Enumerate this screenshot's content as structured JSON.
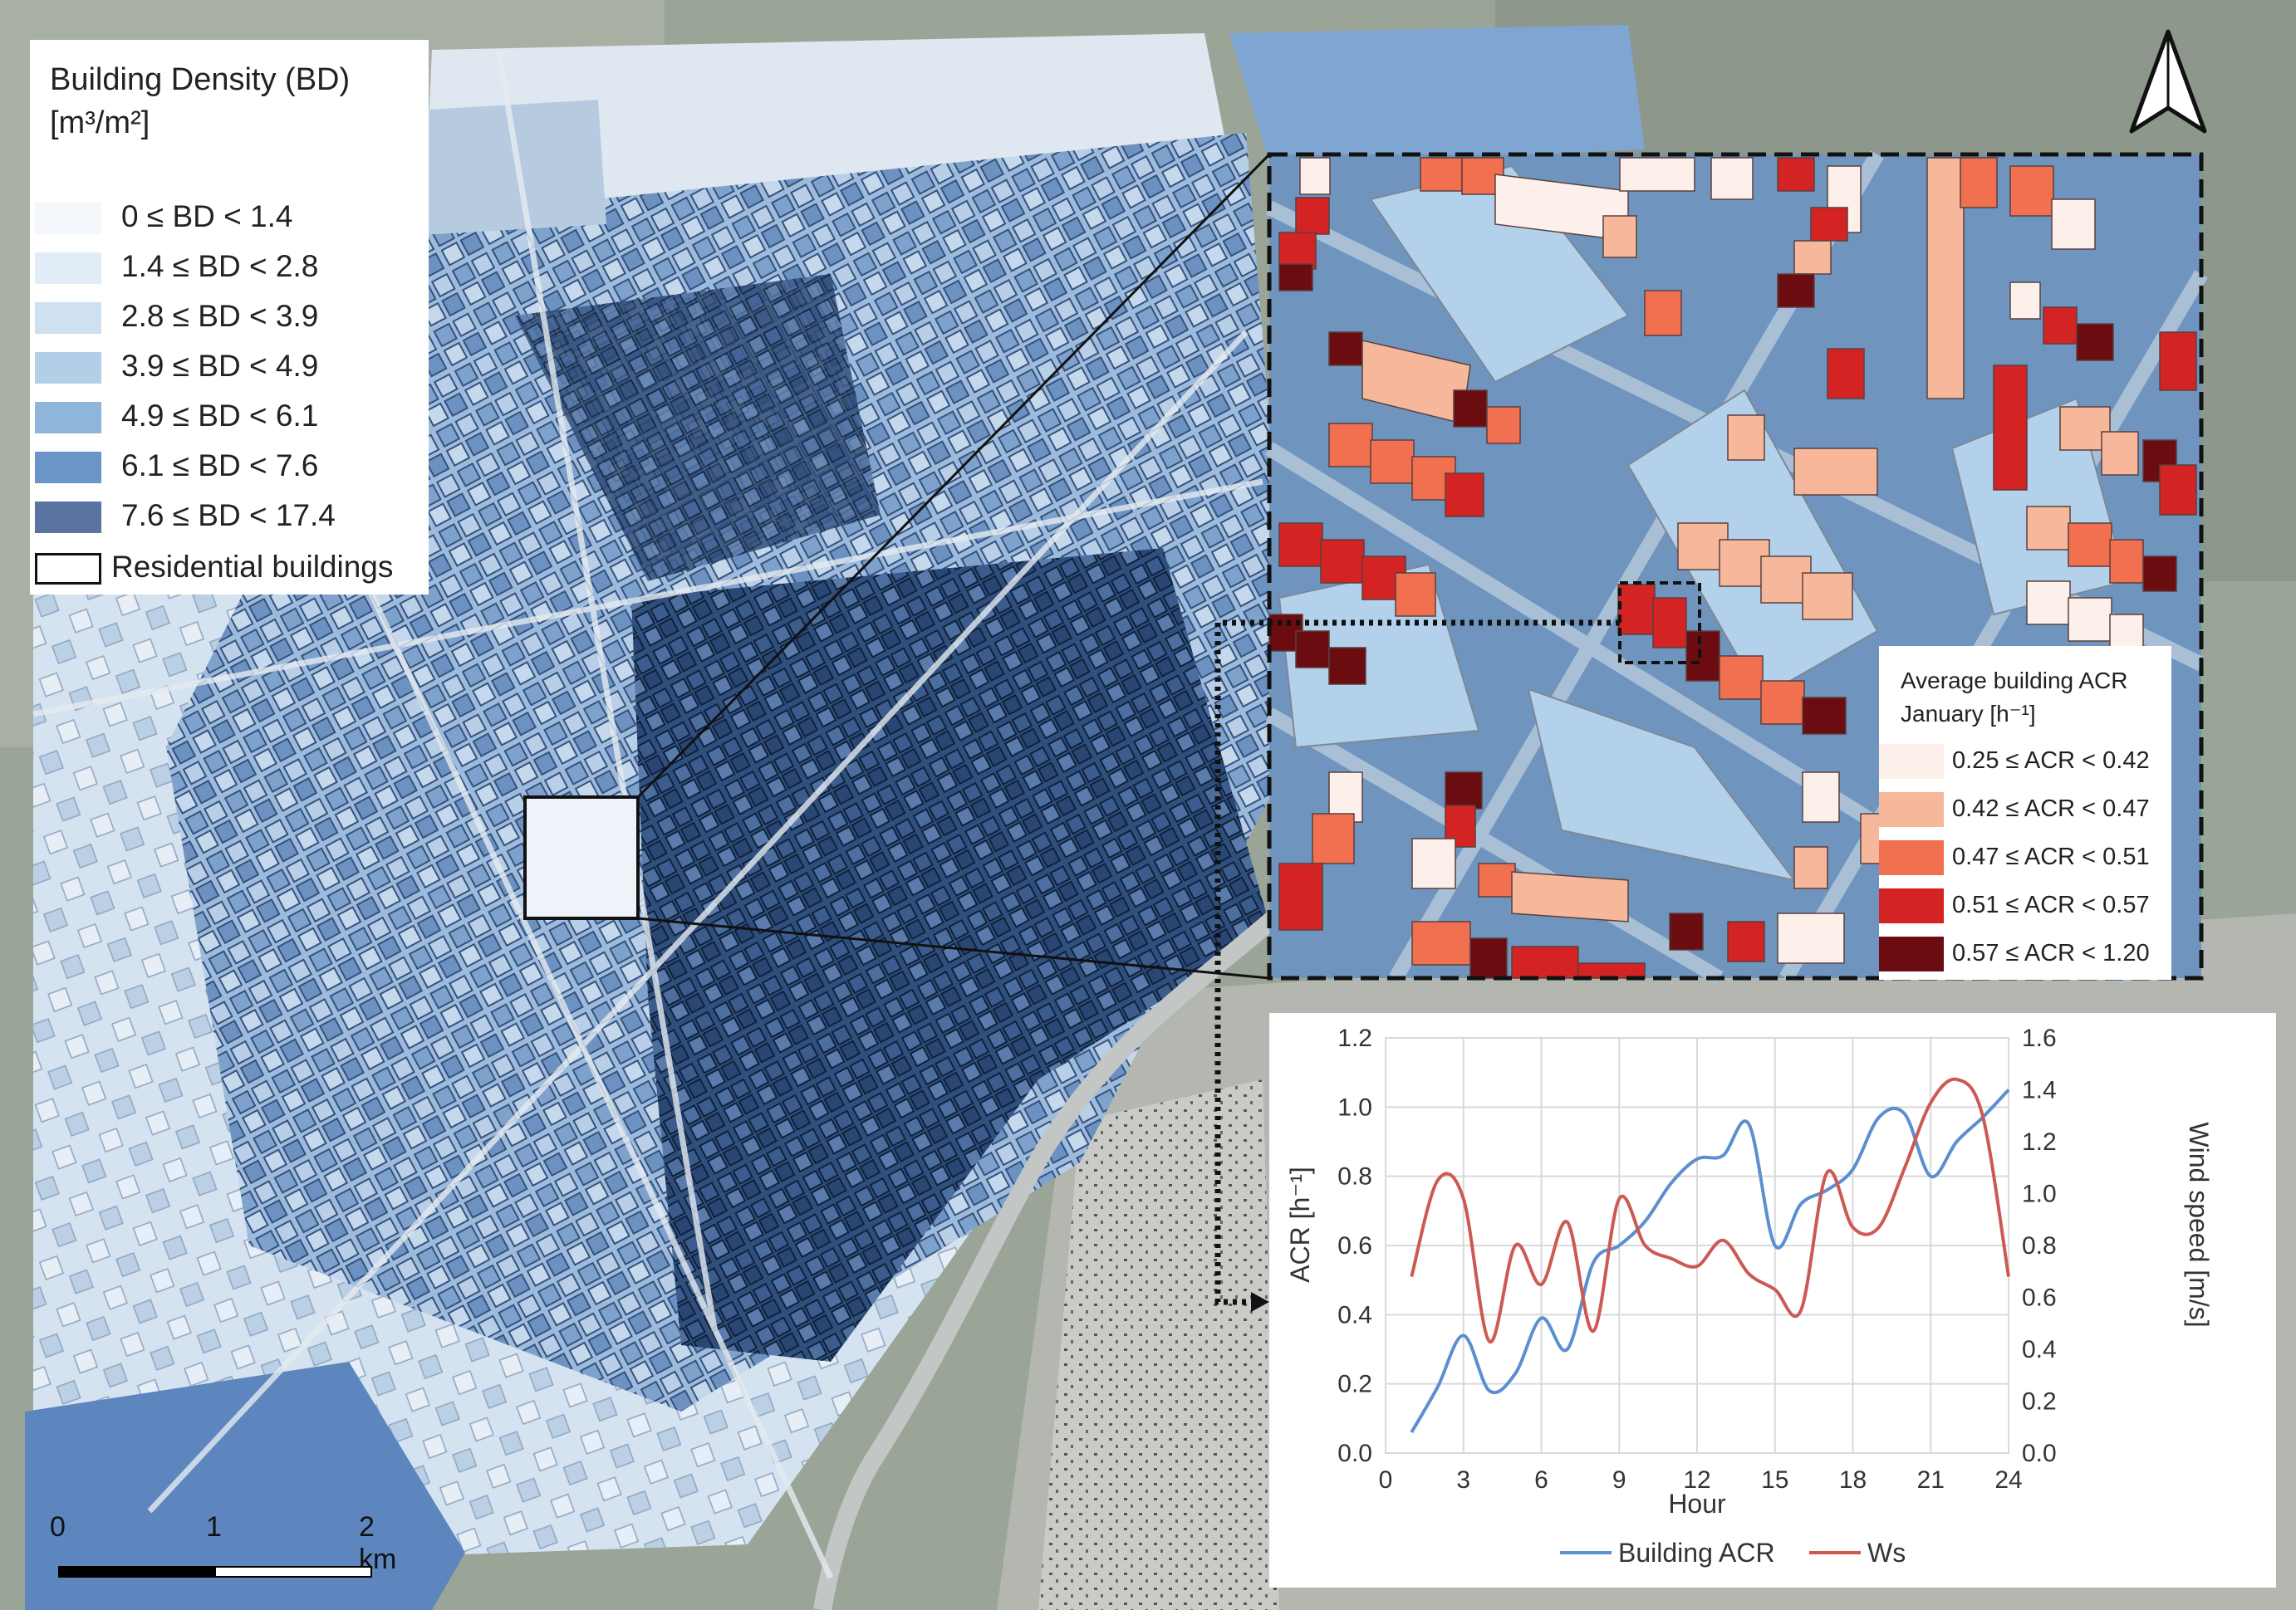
{
  "building_density_legend": {
    "title_line1": "Building Density (BD)",
    "title_line2": "[m³/m²]",
    "classes": [
      {
        "label": "0 ≤ BD < 1.4",
        "color": "#f4f7fb"
      },
      {
        "label": "1.4 ≤ BD < 2.8",
        "color": "#e2ecf6"
      },
      {
        "label": "2.8 ≤  BD < 3.9",
        "color": "#cfe0f0"
      },
      {
        "label": "3.9 ≤ BD < 4.9",
        "color": "#b3cfe7"
      },
      {
        "label": "4.9 ≤ BD < 6.1",
        "color": "#8fb6da"
      },
      {
        "label": "6.1 ≤ BD < 7.6",
        "color": "#6b95c6"
      },
      {
        "label": "7.6 ≤ BD < 17.4",
        "color": "#5b73a1"
      }
    ],
    "residential_label": "Residential buildings"
  },
  "acr_legend": {
    "title_line1": "Average building ACR",
    "title_line2": "January [h⁻¹]",
    "classes": [
      {
        "label": "0.25 ≤ ACR < 0.42",
        "color": "#fdf0ea"
      },
      {
        "label": "0.42 ≤ ACR < 0.47",
        "color": "#f7b79b"
      },
      {
        "label": "0.47 ≤  ACR < 0.51",
        "color": "#f0704f"
      },
      {
        "label": "0.51 ≤ ACR < 0.57",
        "color": "#d42323"
      },
      {
        "label": "0.57 ≤ ACR < 1.20",
        "color": "#6b0c10"
      }
    ]
  },
  "scale_bar": {
    "labels": [
      "0",
      "1",
      "2 km"
    ]
  },
  "chart_data": {
    "type": "line",
    "x": [
      1,
      2,
      3,
      4,
      5,
      6,
      7,
      8,
      9,
      10,
      11,
      12,
      13,
      14,
      15,
      16,
      17,
      18,
      19,
      20,
      21,
      22,
      23,
      24
    ],
    "series": [
      {
        "name": "Building ACR",
        "axis": "left",
        "color": "#5b8fd0",
        "values": [
          0.06,
          0.19,
          0.34,
          0.18,
          0.23,
          0.39,
          0.3,
          0.55,
          0.6,
          0.67,
          0.78,
          0.85,
          0.86,
          0.95,
          0.6,
          0.72,
          0.76,
          0.82,
          0.97,
          0.98,
          0.8,
          0.9,
          0.97,
          1.05
        ]
      },
      {
        "name": "Ws",
        "axis": "right",
        "color": "#cc5a52",
        "values": [
          0.68,
          1.05,
          0.98,
          0.43,
          0.8,
          0.65,
          0.89,
          0.47,
          0.98,
          0.8,
          0.75,
          0.72,
          0.82,
          0.69,
          0.63,
          0.55,
          1.08,
          0.87,
          0.87,
          1.1,
          1.35,
          1.44,
          1.3,
          0.68
        ]
      }
    ],
    "xlabel": "Hour",
    "ylabel_left": "ACR [h⁻¹]",
    "ylabel_right": "Wind speed [m/s]",
    "xticks": [
      0,
      3,
      6,
      9,
      12,
      15,
      18,
      21,
      24
    ],
    "yticks_left": [
      "0.0",
      "0.2",
      "0.4",
      "0.6",
      "0.8",
      "1.0",
      "1.2"
    ],
    "yticks_right": [
      "0.0",
      "0.2",
      "0.4",
      "0.6",
      "0.8",
      "1.0",
      "1.2",
      "1.4",
      "1.6"
    ],
    "xlim": [
      0,
      24
    ],
    "ylim_left": [
      0,
      1.2
    ],
    "ylim_right": [
      0,
      1.6
    ],
    "grid": true,
    "legend_position": "bottom-center"
  }
}
